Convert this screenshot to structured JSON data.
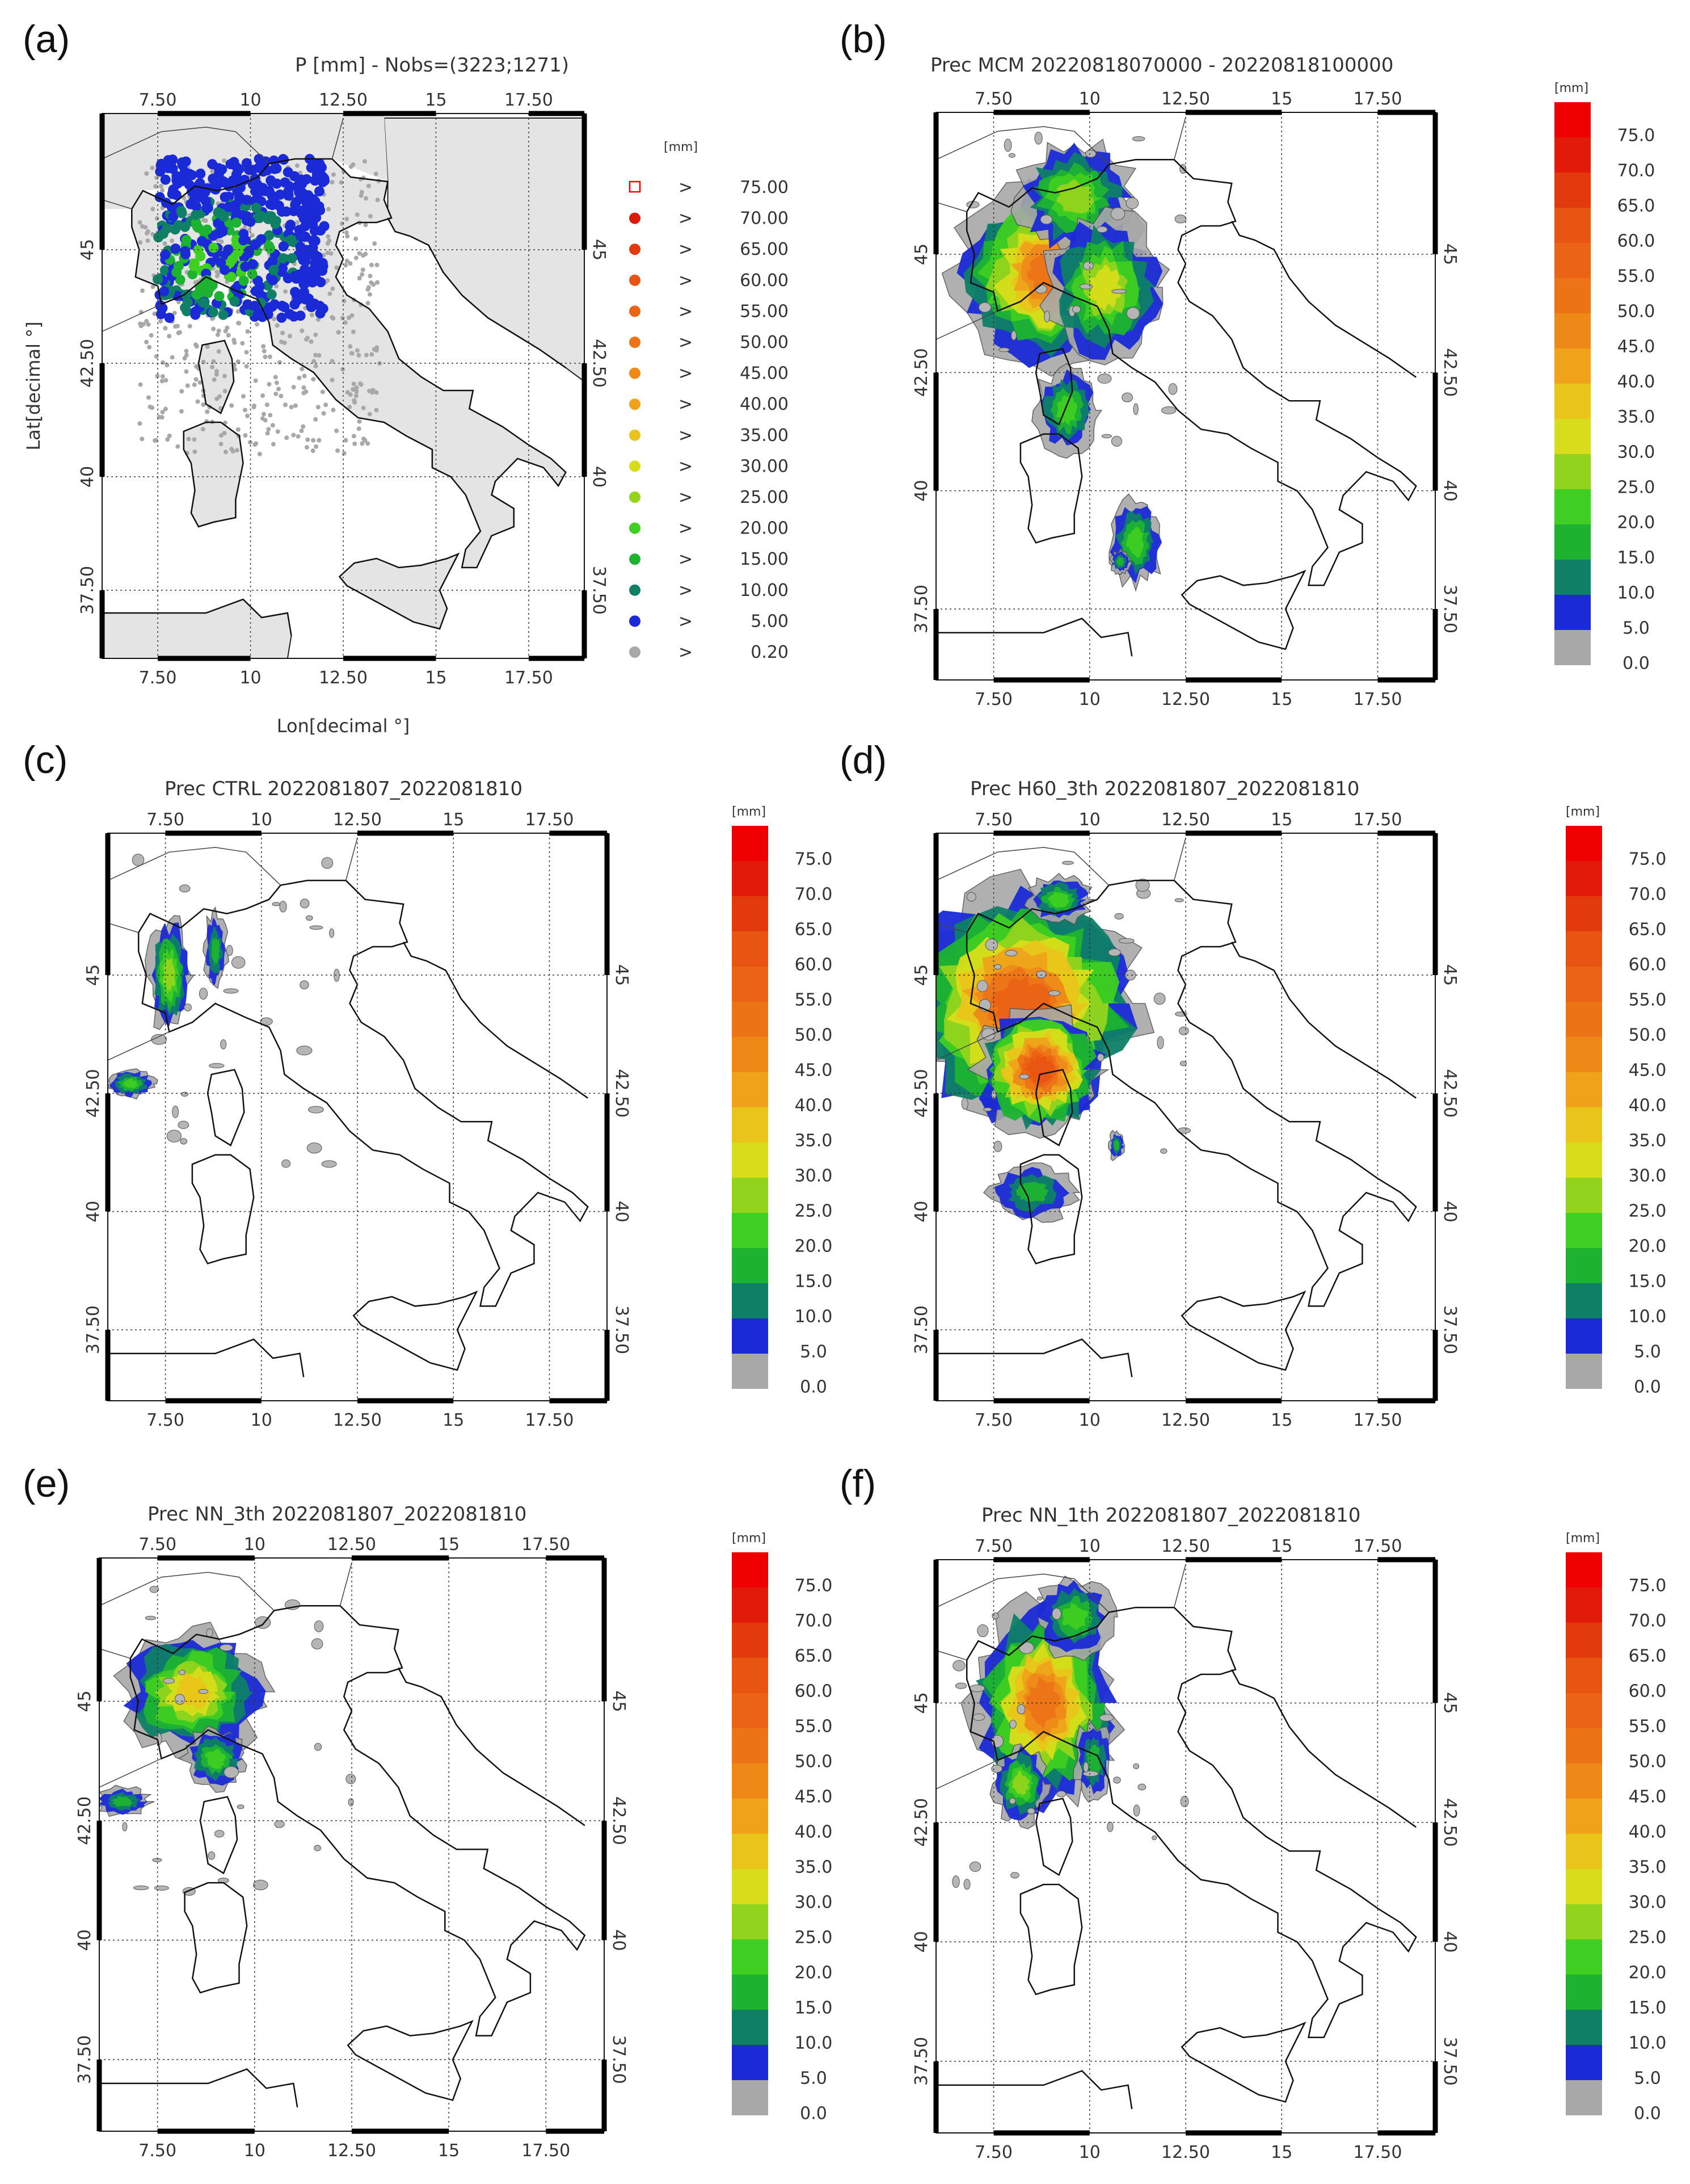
{
  "panels": [
    {
      "id": "a",
      "label": "(a)",
      "title": "P [mm] - Nobs=(3223;1271)",
      "xlabel": "Lon[decimal °]",
      "ylabel": "Lat[decimal °]"
    },
    {
      "id": "b",
      "label": "(b)",
      "title": "Prec MCM 20220818070000 - 20220818100000",
      "xlabel": "",
      "ylabel": ""
    },
    {
      "id": "c",
      "label": "(c)",
      "title": "Prec CTRL 2022081807_2022081810",
      "xlabel": "",
      "ylabel": ""
    },
    {
      "id": "d",
      "label": "(d)",
      "title": "Prec H60_3th 2022081807_2022081810",
      "xlabel": "",
      "ylabel": ""
    },
    {
      "id": "e",
      "label": "(e)",
      "title": "Prec NN_3th 2022081807_2022081810",
      "xlabel": "",
      "ylabel": ""
    },
    {
      "id": "f",
      "label": "(f)",
      "title": "Prec NN_1th 2022081807_2022081810",
      "xlabel": "",
      "ylabel": ""
    }
  ],
  "axes": {
    "lon_ticks": [
      "7.50",
      "10",
      "12.50",
      "15",
      "17.50"
    ],
    "lat_ticks": [
      "37.50",
      "40",
      "42.50",
      "45"
    ],
    "lon_values": [
      7.5,
      10,
      12.5,
      15,
      17.5
    ],
    "lat_values": [
      37.5,
      40,
      42.5,
      45
    ],
    "lon_range": [
      6,
      19
    ],
    "lat_range": [
      36,
      48
    ],
    "grid": "dotted"
  },
  "legend_a": {
    "unit": "[mm]",
    "items": [
      {
        "sym": ">",
        "value": "75.00",
        "color": "#ff0000",
        "hollow": true
      },
      {
        "sym": ">",
        "value": "70.00",
        "color": "#dd1a0a",
        "hollow": false
      },
      {
        "sym": ">",
        "value": "65.00",
        "color": "#e33a0d",
        "hollow": false
      },
      {
        "sym": ">",
        "value": "60.00",
        "color": "#e85512",
        "hollow": false
      },
      {
        "sym": ">",
        "value": "55.00",
        "color": "#eb6315",
        "hollow": false
      },
      {
        "sym": ">",
        "value": "50.00",
        "color": "#ec7417",
        "hollow": false
      },
      {
        "sym": ">",
        "value": "45.00",
        "color": "#ee8918",
        "hollow": false
      },
      {
        "sym": ">",
        "value": "40.00",
        "color": "#eea31a",
        "hollow": false
      },
      {
        "sym": ">",
        "value": "35.00",
        "color": "#e9c41a",
        "hollow": false
      },
      {
        "sym": ">",
        "value": "30.00",
        "color": "#d7dd1a",
        "hollow": false
      },
      {
        "sym": ">",
        "value": "25.00",
        "color": "#92d41d",
        "hollow": false
      },
      {
        "sym": ">",
        "value": "20.00",
        "color": "#3fcf22",
        "hollow": false
      },
      {
        "sym": ">",
        "value": "15.00",
        "color": "#1db331",
        "hollow": false
      },
      {
        "sym": ">",
        "value": "10.00",
        "color": "#0f7f66",
        "hollow": false
      },
      {
        "sym": ">",
        "value": "5.00",
        "color": "#1a2ad6",
        "hollow": false
      },
      {
        "sym": ">",
        "value": "0.20",
        "color": "#a8a8a8",
        "hollow": false
      }
    ]
  },
  "colorbar": {
    "unit": "[mm]",
    "labels": [
      "75.0",
      "70.0",
      "65.0",
      "60.0",
      "55.0",
      "50.0",
      "45.0",
      "40.0",
      "35.0",
      "30.0",
      "25.0",
      "20.0",
      "15.0",
      "10.0",
      "5.0",
      "0.0"
    ],
    "colors": [
      "#ee0000",
      "#e11a0a",
      "#e33a0d",
      "#e85512",
      "#eb6315",
      "#ec7417",
      "#ee8918",
      "#eea31a",
      "#e9c41a",
      "#d7dd1a",
      "#92d41d",
      "#3fcf22",
      "#1db331",
      "#0f7f66",
      "#1a2ad6",
      "#a8a8a8"
    ]
  }
}
